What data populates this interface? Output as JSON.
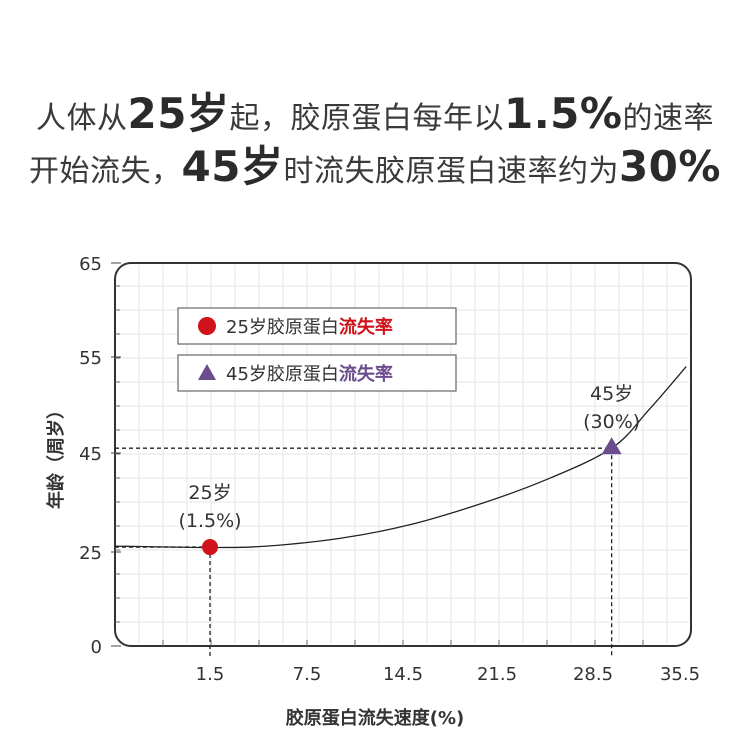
{
  "headline": {
    "line1": [
      "人体从",
      "25岁",
      "起，胶原蛋白每年以",
      "1.5%",
      "的速率"
    ],
    "line2": [
      "开始流失，",
      "45岁",
      "时流失胶原蛋白速率约为",
      "30%"
    ]
  },
  "chart_data": {
    "type": "line",
    "xlabel": "胶原蛋白流失速度(%)",
    "ylabel": "年龄（周岁）",
    "xticks": [
      "1.5",
      "7.5",
      "14.5",
      "21.5",
      "28.5",
      "35.5"
    ],
    "yticks": [
      "0",
      "25",
      "45",
      "55",
      "65"
    ],
    "xlim": [
      -1,
      36
    ],
    "ylim": [
      0,
      65
    ],
    "grid": true,
    "series": [
      {
        "x": [
          -1,
          1.5,
          5,
          10,
          15,
          20,
          25,
          30,
          33,
          36
        ],
        "y": [
          26.2,
          25.9,
          26.2,
          27.8,
          30.5,
          34.5,
          39.5,
          45.5,
          49.5,
          54.0
        ]
      }
    ],
    "points": [
      {
        "x": 1.5,
        "y": 26,
        "marker": "circle",
        "color": "#d0121b",
        "label_top": "25岁",
        "label_bottom": "(1.5%)"
      },
      {
        "x": 30,
        "y": 45.5,
        "marker": "triangle",
        "color": "#6b4c8c",
        "label_top": "45岁",
        "label_bottom": "(30%)"
      }
    ],
    "legend": {
      "placement": "top-left",
      "items": [
        {
          "prefix": "25岁胶原蛋白",
          "emphasis": "流失率",
          "emphasis_color": "#d0121b",
          "marker": "circle",
          "marker_color": "#d0121b"
        },
        {
          "prefix": "45岁胶原蛋白",
          "emphasis": "流失率",
          "emphasis_color": "#6b4c8c",
          "marker": "triangle",
          "marker_color": "#6b4c8c"
        }
      ]
    }
  },
  "colors": {
    "frame": "#333333",
    "grid": "#e6e6e6",
    "curve": "#222222"
  }
}
